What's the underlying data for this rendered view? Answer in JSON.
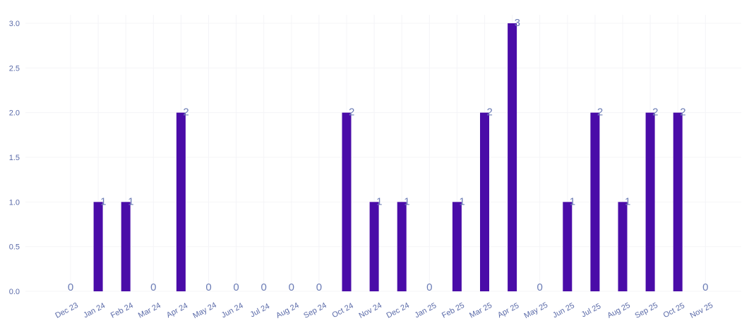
{
  "chart_data": {
    "type": "bar",
    "categories": [
      "Dec 23",
      "Jan 24",
      "Feb 24",
      "Mar 24",
      "Apr 24",
      "May 24",
      "Jun 24",
      "Jul 24",
      "Aug 24",
      "Sep 24",
      "Oct 24",
      "Nov 24",
      "Dec 24",
      "Jan 25",
      "Feb 25",
      "Mar 25",
      "Apr 25",
      "May 25",
      "Jun 25",
      "Jul 25",
      "Aug 25",
      "Sep 25",
      "Oct 25",
      "Nov 25"
    ],
    "values": [
      0,
      1,
      1,
      0,
      2,
      0,
      0,
      0,
      0,
      0,
      2,
      1,
      1,
      0,
      1,
      2,
      3,
      0,
      1,
      2,
      1,
      2,
      2,
      0
    ],
    "data_labels": [
      "0",
      "1",
      "1",
      "0",
      "2",
      "0",
      "0",
      "0",
      "0",
      "0",
      "2",
      "1",
      "1",
      "0",
      "1",
      "2",
      "3",
      "0",
      "1",
      "2",
      "1",
      "2",
      "2",
      "0"
    ],
    "yticks": [
      0,
      0.5,
      1,
      1.5,
      2,
      2.5,
      3
    ],
    "ytick_labels": [
      "0.0",
      "0.5",
      "1.0",
      "1.5",
      "2.0",
      "2.5",
      "3.0"
    ],
    "ylim": [
      0,
      3
    ],
    "title": "",
    "xlabel": "",
    "ylabel": "",
    "grid": true,
    "legend": "none",
    "colors": {
      "bar": "#4a0ca8",
      "grid": "#f4f4f7",
      "tick_text": "#5a6aa8",
      "label_text": "#6b7cb5"
    }
  }
}
